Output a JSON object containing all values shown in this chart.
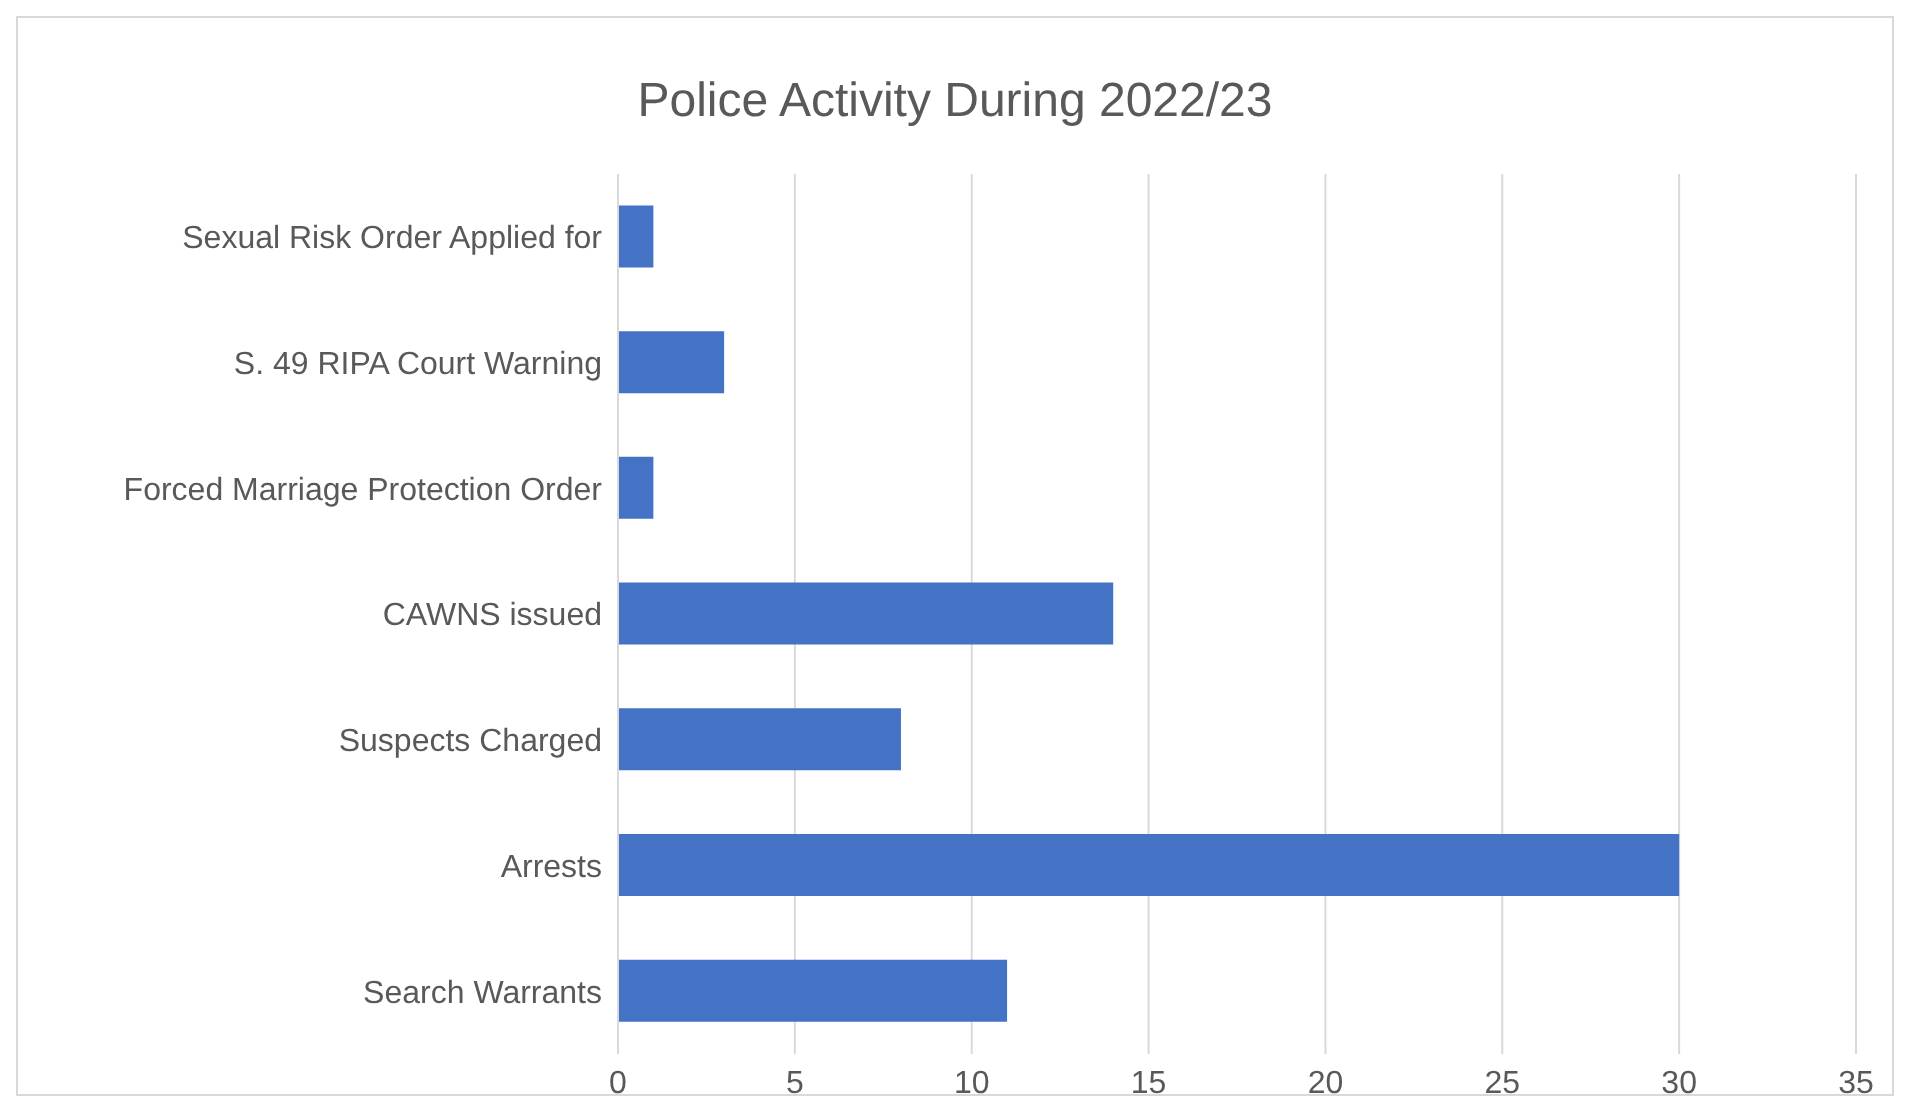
{
  "chart_data": {
    "type": "bar",
    "orientation": "horizontal",
    "title": "Police Activity During 2022/23",
    "categories": [
      "Sexual Risk Order Applied for",
      "S. 49 RIPA Court Warning",
      "Forced Marriage Protection Order",
      "CAWNS issued",
      "Suspects Charged",
      "Arrests",
      "Search Warrants"
    ],
    "values": [
      1,
      3,
      1,
      14,
      8,
      30,
      11
    ],
    "color": "#4472c4",
    "xlim": [
      0,
      35
    ],
    "xticks": [
      0,
      5,
      10,
      15,
      20,
      25,
      30,
      35
    ],
    "grid": "x",
    "legend": false
  }
}
